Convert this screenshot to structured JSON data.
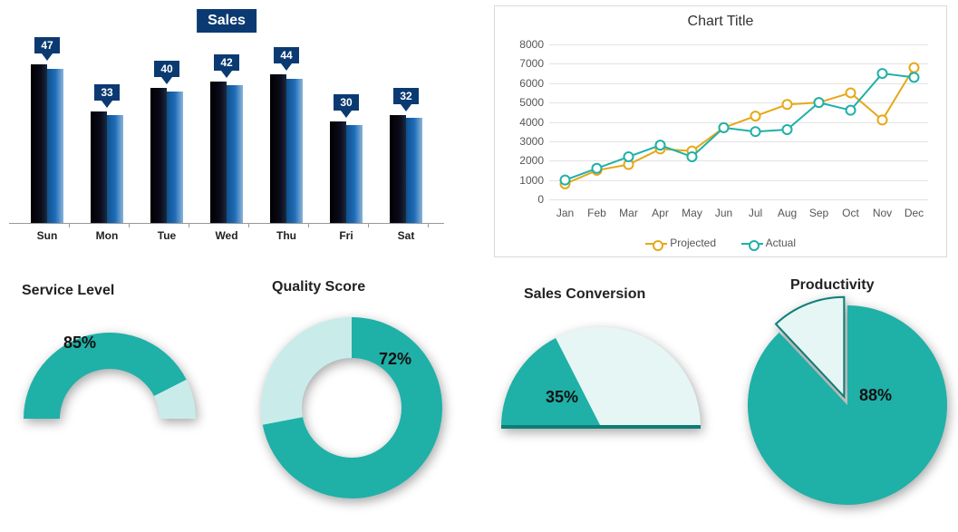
{
  "bar_chart": {
    "type": "bar",
    "title": "Sales",
    "categories": [
      "Sun",
      "Mon",
      "Tue",
      "Wed",
      "Thu",
      "Fri",
      "Sat"
    ],
    "values": [
      47,
      33,
      40,
      42,
      44,
      30,
      32
    ],
    "ylim": [
      0,
      50
    ],
    "bar_colors": {
      "dark": "#0a0a1a",
      "light": "#1e6bb8"
    },
    "callout_bg": "#0b3a72",
    "callout_text_color": "#ffffff",
    "axis_color": "#999999",
    "xlabel_fontsize": 12,
    "value_fontsize": 12,
    "title_fontsize": 16
  },
  "line_chart": {
    "type": "line",
    "title": "Chart Title",
    "categories": [
      "Jan",
      "Feb",
      "Mar",
      "Apr",
      "May",
      "Jun",
      "Jul",
      "Aug",
      "Sep",
      "Oct",
      "Nov",
      "Dec"
    ],
    "series": [
      {
        "name": "Projected",
        "color": "#e6a817",
        "values": [
          800,
          1500,
          1800,
          2600,
          2500,
          3700,
          4300,
          4900,
          5000,
          5500,
          4100,
          6800
        ]
      },
      {
        "name": "Actual",
        "color": "#1fb0a8",
        "values": [
          1000,
          1600,
          2200,
          2800,
          2200,
          3700,
          3500,
          3600,
          5000,
          4600,
          6500,
          6300
        ]
      }
    ],
    "ylim": [
      0,
      8000
    ],
    "ytick_step": 1000,
    "grid_color": "#e3e3e3",
    "border_color": "#d9d9d9",
    "background_color": "#ffffff",
    "tick_fontsize": 12,
    "title_fontsize": 16,
    "marker": "circle",
    "marker_size": 5,
    "line_width": 2
  },
  "service_level": {
    "type": "gauge-half-donut",
    "title": "Service Level",
    "value_pct": 85,
    "label": "85%",
    "fill_color": "#1fb0a8",
    "remainder_color": "#c9ecea",
    "label_fontsize": 18
  },
  "quality_score": {
    "type": "donut",
    "title": "Quality Score",
    "value_pct": 72,
    "label": "72%",
    "fill_color": "#1fb0a8",
    "remainder_color": "#c9ecea",
    "inner_radius_ratio": 0.55,
    "label_fontsize": 18
  },
  "sales_conversion": {
    "type": "half-pie",
    "title": "Sales Conversion",
    "value_pct": 35,
    "label": "35%",
    "fill_color": "#1fb0a8",
    "remainder_color": "#e6f6f5",
    "edge_color": "#0d7d76",
    "label_fontsize": 18
  },
  "productivity": {
    "type": "pie",
    "title": "Productivity",
    "value_pct": 88,
    "label": "88%",
    "fill_color": "#1fb0a8",
    "remainder_color": "#e6f6f5",
    "edge_color": "#0d7d76",
    "label_fontsize": 18
  },
  "palette": {
    "teal": "#1fb0a8",
    "teal_light": "#c9ecea",
    "teal_pale": "#e6f6f5",
    "teal_dark": "#0d7d76",
    "navy": "#0b3a72",
    "yellow": "#e6a817"
  }
}
